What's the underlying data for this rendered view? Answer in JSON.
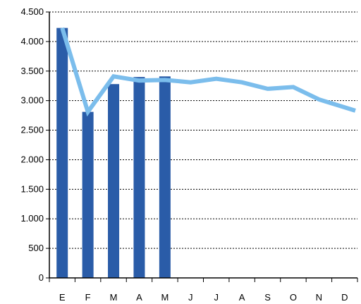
{
  "chart_data": {
    "type": "bar",
    "categories": [
      "E",
      "F",
      "M",
      "A",
      "M",
      "J",
      "J",
      "A",
      "S",
      "O",
      "N",
      "D"
    ],
    "ylim": [
      0,
      4500
    ],
    "yticks": [
      0,
      500,
      1000,
      1500,
      2000,
      2500,
      3000,
      3500,
      4000,
      4500
    ],
    "ytick_labels": [
      "0",
      "500",
      "1.000",
      "1.500",
      "2.000",
      "2.500",
      "3.000",
      "3.500",
      "4.000",
      "4.500"
    ],
    "grid": "horizontal dotted",
    "series": [
      {
        "type": "bar",
        "color": "#2a5ca8",
        "values": [
          4230,
          2810,
          3280,
          3400,
          3410,
          null,
          null,
          null,
          null,
          null,
          null,
          null
        ]
      },
      {
        "type": "line",
        "color": "#7bbdec",
        "values": [
          4230,
          2810,
          3410,
          3340,
          3350,
          3310,
          3370,
          3310,
          3200,
          3230,
          3020,
          2830
        ]
      }
    ]
  }
}
